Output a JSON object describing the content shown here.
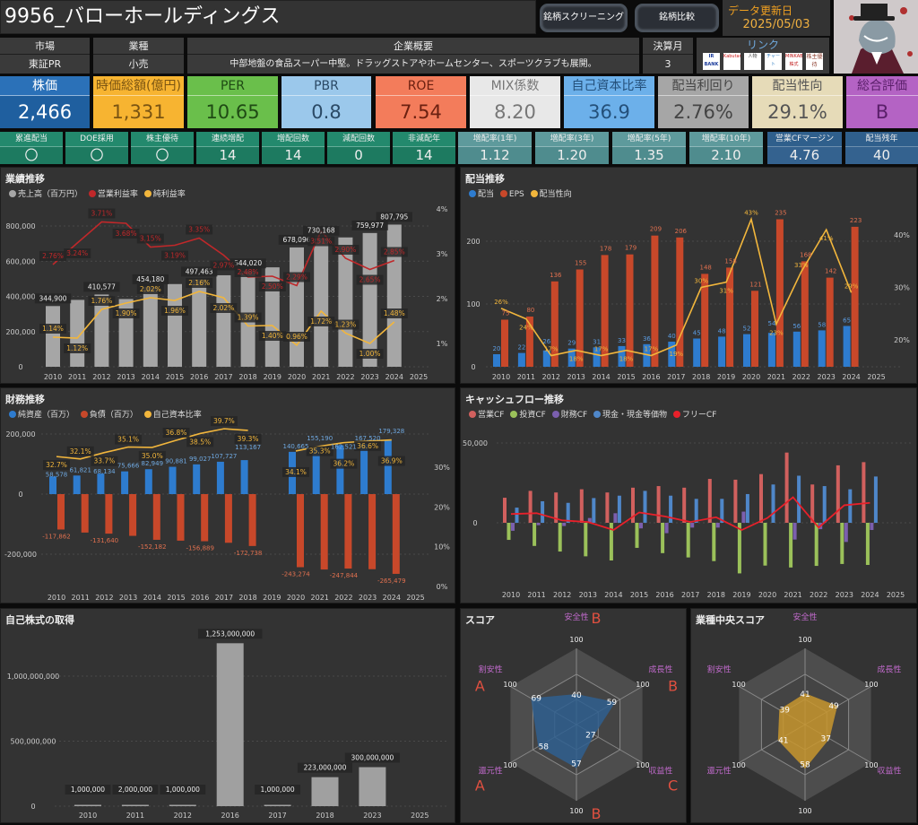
{
  "header": {
    "title": "9956_バローホールディングス",
    "screening_button": "銘柄スクリーニング",
    "compare_button": "銘柄比較",
    "update_label": "データ更新日",
    "update_date": "2025/05/03"
  },
  "info": {
    "market": {
      "label": "市場",
      "value": "東証PR"
    },
    "industry": {
      "label": "業種",
      "value": "小売"
    },
    "summary": {
      "label": "企業概要",
      "value": "中部地盤の食品スーパー中堅。ドラッグストアやホームセンター、スポーツクラブも展開。"
    },
    "fiscal": {
      "label": "決算月",
      "value": "3"
    },
    "links": {
      "label": "リンク",
      "items": [
        "IR BANK",
        "Kabutan",
        "人物",
        "チャート",
        "MINKABU 株式",
        "株主優待"
      ]
    }
  },
  "kpis": [
    {
      "label": "株価",
      "value": "2,466",
      "bg": "#1f5f9f",
      "hbg": "#2b71b8",
      "fg": "#ffffff"
    },
    {
      "label": "時価総額(億円)",
      "value": "1,331",
      "bg": "#f7b431",
      "hbg": "#f7b431",
      "fg": "#7a5412"
    },
    {
      "label": "PER",
      "value": "10.65",
      "bg": "#6abf4b",
      "hbg": "#6abf4b",
      "fg": "#1f4a14"
    },
    {
      "label": "PBR",
      "value": "0.8",
      "bg": "#9bc8eb",
      "hbg": "#9bc8eb",
      "fg": "#2b4a66"
    },
    {
      "label": "ROE",
      "value": "7.54",
      "bg": "#f37c5b",
      "hbg": "#f37c5b",
      "fg": "#6b2010"
    },
    {
      "label": "MIX係数",
      "value": "8.20",
      "bg": "#e8e8e8",
      "hbg": "#e8e8e8",
      "fg": "#777777"
    },
    {
      "label": "自己資本比率",
      "value": "36.9",
      "bg": "#6cb0ea",
      "hbg": "#6cb0ea",
      "fg": "#24507a"
    },
    {
      "label": "配当利回り",
      "value": "2.76%",
      "bg": "#a6a6a6",
      "hbg": "#a6a6a6",
      "fg": "#444444"
    },
    {
      "label": "配当性向",
      "value": "29.1%",
      "bg": "#e6dbb8",
      "hbg": "#e6dbb8",
      "fg": "#555555"
    },
    {
      "label": "総合評価",
      "value": "B",
      "bg": "#b463c4",
      "hbg": "#b463c4",
      "fg": "#5a1f6a"
    }
  ],
  "stats": [
    {
      "label": "累進配当",
      "value": "〇"
    },
    {
      "label": "DOE採用",
      "value": "〇"
    },
    {
      "label": "株主優待",
      "value": "〇"
    },
    {
      "label": "連続増配",
      "value": "14"
    },
    {
      "label": "増配回数",
      "value": "14"
    },
    {
      "label": "減配回数",
      "value": "0"
    },
    {
      "label": "非減配年",
      "value": "14"
    },
    {
      "label": "増配率(1年)",
      "value": "1.12"
    },
    {
      "label": "増配率(3年)",
      "value": "1.20"
    },
    {
      "label": "増配率(5年)",
      "value": "1.35"
    },
    {
      "label": "増配率(10年)",
      "value": "2.10"
    },
    {
      "label": "営業CFマージン",
      "value": "4.76"
    },
    {
      "label": "配当残年",
      "value": "40"
    }
  ],
  "chart_data": [
    {
      "id": "performance",
      "type": "bar+line",
      "title": "業績推移",
      "x": [
        "2010",
        "2011",
        "2012",
        "2013",
        "2014",
        "2015",
        "2016",
        "2017",
        "2018",
        "2019",
        "2020",
        "2021",
        "2022",
        "2023",
        "2024",
        "2025"
      ],
      "legend": [
        "売上高（百万円）",
        "営業利益率",
        "純利益率"
      ],
      "left_ticks": [
        "0",
        "200,000",
        "400,000",
        "600,000",
        "800,000"
      ],
      "right_ticks": [
        "1%",
        "2%",
        "3%",
        "4%"
      ],
      "series": [
        {
          "name": "売上高（百万円）",
          "kind": "bar",
          "color": "#a6a6a6",
          "values": [
            344900,
            380000,
            410577,
            385000,
            454180,
            470000,
            497463,
            520000,
            544020,
            565000,
            678096,
            730168,
            735000,
            759977,
            807795,
            null
          ],
          "labels": [
            "344,900",
            null,
            "410,577",
            null,
            "454,180",
            null,
            "497,463",
            null,
            "544,020",
            null,
            "678,096",
            "730,168",
            null,
            "759,977",
            "807,795",
            null
          ]
        },
        {
          "name": "営業利益率",
          "kind": "line",
          "color": "#c0282a",
          "values": [
            2.76,
            3.24,
            3.71,
            3.68,
            3.15,
            3.19,
            3.35,
            2.97,
            2.48,
            2.5,
            2.29,
            3.51,
            2.9,
            2.65,
            2.85,
            null
          ],
          "labels": [
            "2.76%",
            "3.24%",
            "3.71%",
            "3.68%",
            "3.15%",
            "3.19%",
            "3.35%",
            "2.97%",
            "2.48%",
            "2.50%",
            "2.29%",
            "3.51%",
            "2.90%",
            "2.65%",
            "2.85%",
            null
          ]
        },
        {
          "name": "純利益率",
          "kind": "line",
          "color": "#f2b63c",
          "values": [
            1.14,
            1.12,
            1.76,
            1.9,
            2.02,
            1.96,
            2.16,
            2.02,
            1.39,
            1.4,
            0.96,
            1.72,
            1.23,
            1.0,
            1.48,
            null
          ],
          "labels": [
            "1.14%",
            "1.12%",
            "1.76%",
            "1.90%",
            "2.02%",
            "1.96%",
            "2.16%",
            "2.02%",
            "1.39%",
            "1.40%",
            "0.96%",
            "1.72%",
            "1.23%",
            "1.00%",
            "1.48%",
            null
          ]
        }
      ]
    },
    {
      "id": "dividend",
      "type": "bar+line",
      "title": "配当推移",
      "x": [
        "2010",
        "2011",
        "2012",
        "2013",
        "2014",
        "2015",
        "2016",
        "2017",
        "2018",
        "2019",
        "2020",
        "2021",
        "2022",
        "2023",
        "2024",
        "2025"
      ],
      "legend": [
        "配当",
        "EPS",
        "配当性向"
      ],
      "left_ticks": [
        "0",
        "100",
        "200"
      ],
      "right_ticks": [
        "20%",
        "30%",
        "40%"
      ],
      "series": [
        {
          "name": "配当",
          "kind": "bar",
          "color": "#2e7ccf",
          "values": [
            20,
            22,
            26,
            29,
            31,
            33,
            36,
            40,
            45,
            48,
            52,
            54,
            56,
            58,
            65,
            null
          ]
        },
        {
          "name": "EPS",
          "kind": "bar",
          "color": "#c8482a",
          "values": [
            75,
            80,
            136,
            155,
            178,
            179,
            209,
            206,
            148,
            158,
            121,
            235,
            168,
            142,
            223,
            null
          ]
        },
        {
          "name": "配当性向",
          "kind": "line",
          "color": "#f2b63c",
          "values": [
            26,
            24,
            17,
            18,
            17,
            18,
            17,
            19,
            30,
            31,
            43,
            23,
            33,
            41,
            29,
            null
          ]
        }
      ]
    },
    {
      "id": "financial",
      "type": "bar+line",
      "title": "財務推移",
      "x": [
        "2010",
        "2011",
        "2012",
        "2013",
        "2014",
        "2015",
        "2016",
        "2017",
        "2018",
        "2019",
        "2020",
        "2021",
        "2022",
        "2023",
        "2024",
        "2025"
      ],
      "legend": [
        "純資産（百万）",
        "負債（百万）",
        "自己資本比率"
      ],
      "left_ticks": [
        "-200,000",
        "0",
        "200,000"
      ],
      "right_ticks": [
        "0%",
        "10%",
        "20%",
        "30%"
      ],
      "series": [
        {
          "name": "純資産（百万）",
          "kind": "bar",
          "color": "#2e7ccf",
          "values": [
            58578,
            61821,
            68134,
            75666,
            82949,
            90881,
            99027,
            107727,
            113167,
            null,
            140665,
            155190,
            162521,
            167520,
            179328,
            null
          ],
          "labels": [
            "58,578",
            "61,821",
            "68,134",
            "75,666",
            "82,949",
            "90,881",
            "99,027",
            "107,727",
            "113,167",
            null,
            "140,665",
            "155,190",
            "162,521",
            "167,520",
            "179,328",
            null
          ]
        },
        {
          "name": "負債（百万）",
          "kind": "bar",
          "color": "#c8482a",
          "values": [
            -117862,
            -128000,
            -131640,
            -139000,
            -152182,
            -155000,
            -156889,
            -162000,
            -172738,
            null,
            -243274,
            -251000,
            -247844,
            -250000,
            -265479,
            null
          ],
          "labels": [
            "-117,862",
            null,
            "-131,640",
            null,
            "-152,182",
            null,
            "-156,889",
            null,
            "-172,738",
            null,
            "-243,274",
            null,
            "-247,844",
            null,
            "-265,479",
            null
          ]
        },
        {
          "name": "自己資本比率",
          "kind": "line",
          "color": "#f2b63c",
          "values": [
            32.7,
            32.1,
            33.7,
            35.1,
            35.0,
            36.8,
            38.5,
            39.7,
            39.3,
            null,
            34.1,
            35.3,
            36.2,
            36.6,
            36.9,
            null
          ],
          "labels": [
            "32.7%",
            "32.1%",
            "33.7%",
            "35.1%",
            "35.0%",
            "36.8%",
            "38.5%",
            "39.7%",
            "39.3%",
            null,
            "34.1%",
            "35.3%",
            "36.2%",
            "36.6%",
            "36.9%",
            null
          ]
        }
      ]
    },
    {
      "id": "cashflow",
      "type": "bar+line",
      "title": "キャッシュフロー推移",
      "x": [
        "2010",
        "2011",
        "2012",
        "2013",
        "2014",
        "2015",
        "2016",
        "2017",
        "2018",
        "2019",
        "2020",
        "2021",
        "2022",
        "2023",
        "2024",
        "2025"
      ],
      "legend": [
        "営業CF",
        "投資CF",
        "財務CF",
        "現金・現金等価物",
        "フリーCF"
      ],
      "left_ticks": [
        "0",
        "50,000"
      ],
      "series": [
        {
          "name": "営業CF",
          "kind": "bar",
          "color": "#d1605e",
          "values": [
            15700,
            20000,
            19000,
            21000,
            19000,
            22000,
            23000,
            22000,
            27500,
            27000,
            30500,
            44000,
            24000,
            36000,
            38000,
            null
          ]
        },
        {
          "name": "投資CF",
          "kind": "bar",
          "color": "#9bc15a",
          "values": [
            -10700,
            -14500,
            -18000,
            -21000,
            -23600,
            -15700,
            -19000,
            -21700,
            -24000,
            -31700,
            -26800,
            -28000,
            -27000,
            -25800,
            -26400,
            null
          ]
        },
        {
          "name": "財務CF",
          "kind": "bar",
          "color": "#7b5fae",
          "values": [
            -5000,
            -1500,
            -2000,
            3000,
            6000,
            -3500,
            -6500,
            -3000,
            -3000,
            7000,
            0,
            -10500,
            -4000,
            -12000,
            -4500,
            null
          ]
        },
        {
          "name": "現金・現金等価物",
          "kind": "bar",
          "color": "#4f87c9",
          "values": [
            9500,
            13500,
            12500,
            15500,
            17000,
            20000,
            17000,
            15000,
            15000,
            18000,
            24000,
            29500,
            23000,
            21000,
            29000,
            null
          ]
        },
        {
          "name": "フリーCF",
          "kind": "line",
          "color": "#e8202a",
          "values": [
            5500,
            6000,
            1500,
            500,
            -4500,
            6500,
            4000,
            500,
            3500,
            -4500,
            3000,
            16000,
            -3000,
            11000,
            12500,
            null
          ]
        }
      ]
    },
    {
      "id": "buyback",
      "type": "bar",
      "title": "自己株式の取得",
      "categories": [
        "2010",
        "2011",
        "2012",
        "2016",
        "2017",
        "2018",
        "2023",
        "2025"
      ],
      "values": [
        1000000,
        2000000,
        1000000,
        1253000000,
        1000000,
        223000000,
        300000000,
        null
      ],
      "labels": [
        "1,000,000",
        "2,000,000",
        "1,000,000",
        "1,253,000,000",
        "1,000,000",
        "223,000,000",
        "300,000,000",
        null
      ],
      "left_ticks": [
        "0",
        "500,000,000",
        "1,000,000,000"
      ]
    },
    {
      "id": "score",
      "type": "radar",
      "title": "スコア",
      "color": "#2f5f8f",
      "axes": [
        "安全性",
        "成長性",
        "収益性",
        "効率性",
        "還元性",
        "割安性"
      ],
      "values": [
        40,
        59,
        27,
        57,
        58,
        69
      ],
      "grades": [
        "B",
        "B",
        "C",
        "B",
        "A",
        "A"
      ],
      "max": 100,
      "max_label": "100"
    },
    {
      "id": "industry_score",
      "type": "radar",
      "title": "業種中央スコア",
      "color": "#c8962e",
      "axes": [
        "安全性",
        "成長性",
        "収益性",
        "効率性",
        "還元性",
        "割安性"
      ],
      "values": [
        41,
        49,
        37,
        58,
        41,
        39
      ],
      "max": 100,
      "max_label": "100"
    }
  ]
}
